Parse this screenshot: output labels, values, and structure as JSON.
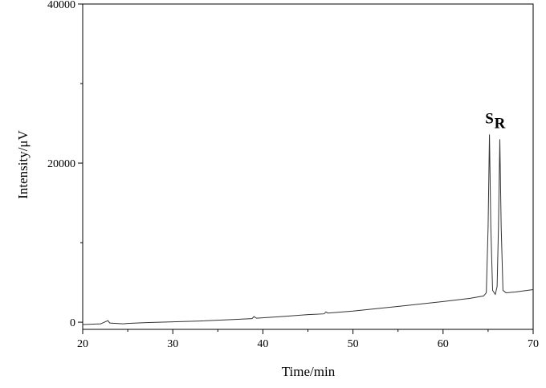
{
  "chart_data": {
    "type": "line",
    "xlabel": "Time/min",
    "ylabel": "Intensity/μV",
    "annotations": [
      "S",
      "R"
    ],
    "xlim": [
      20,
      70
    ],
    "xticks": [
      20,
      30,
      40,
      50,
      60,
      70
    ],
    "xminor": [
      25,
      35,
      45,
      55,
      65
    ],
    "ylim": [
      -900,
      40000
    ],
    "yticks": [
      0,
      20000,
      40000
    ],
    "yminor": [
      10000,
      30000
    ],
    "series": [
      {
        "color": "#333333",
        "x": [
          20,
          22,
          22.8,
          23,
          24.5,
          25,
          27,
          30,
          33,
          36,
          38.8,
          39,
          39.3,
          42,
          45,
          46.8,
          47,
          47.2,
          50,
          53,
          56,
          60,
          63,
          64.5,
          64.8,
          65.0,
          65.15,
          65.3,
          65.5,
          65.8,
          66.0,
          66.15,
          66.3,
          66.45,
          66.65,
          67,
          68,
          70
        ],
        "values": [
          -300,
          -200,
          200,
          -100,
          -200,
          -150,
          -50,
          50,
          150,
          300,
          450,
          700,
          500,
          700,
          950,
          1050,
          1300,
          1150,
          1400,
          1750,
          2100,
          2600,
          3000,
          3300,
          3700,
          12000,
          23600,
          12000,
          4000,
          3500,
          4500,
          12000,
          23000,
          12000,
          4000,
          3700,
          3800,
          4100
        ]
      }
    ]
  }
}
